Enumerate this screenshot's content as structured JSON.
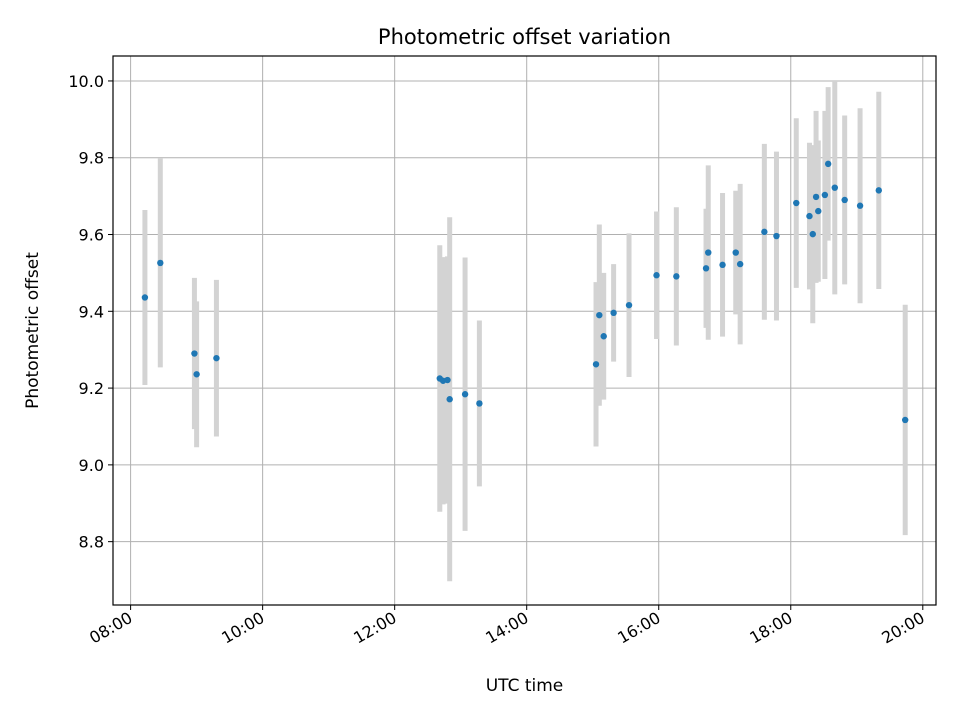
{
  "chart_data": {
    "type": "scatter",
    "title": "Photometric offset variation",
    "xlabel": "UTC time",
    "ylabel": "Photometric offset",
    "x_ticks": [
      "08:00",
      "10:00",
      "12:00",
      "14:00",
      "16:00",
      "18:00",
      "20:00"
    ],
    "y_ticks": [
      "8.8",
      "9.0",
      "9.2",
      "9.4",
      "9.6",
      "9.8",
      "10.0"
    ],
    "xlim": [
      "07:44",
      "20:12"
    ],
    "ylim": [
      8.635,
      10.065
    ],
    "grid": true,
    "marker_color": "#1f77b4",
    "errorbar_color": "#d3d3d3",
    "points": [
      {
        "x": "08:13",
        "y": 9.436,
        "err": 0.228
      },
      {
        "x": "08:27",
        "y": 9.526,
        "err": 0.272
      },
      {
        "x": "08:58",
        "y": 9.29,
        "err": 0.197
      },
      {
        "x": "09:00",
        "y": 9.236,
        "err": 0.19
      },
      {
        "x": "09:18",
        "y": 9.278,
        "err": 0.204
      },
      {
        "x": "12:41",
        "y": 9.225,
        "err": 0.347
      },
      {
        "x": "12:44",
        "y": 9.219,
        "err": 0.322
      },
      {
        "x": "12:48",
        "y": 9.221,
        "err": 0.322
      },
      {
        "x": "12:50",
        "y": 9.171,
        "err": 0.474
      },
      {
        "x": "13:04",
        "y": 9.184,
        "err": 0.356
      },
      {
        "x": "13:17",
        "y": 9.16,
        "err": 0.216
      },
      {
        "x": "15:03",
        "y": 9.262,
        "err": 0.214
      },
      {
        "x": "15:06",
        "y": 9.39,
        "err": 0.236
      },
      {
        "x": "15:10",
        "y": 9.335,
        "err": 0.165
      },
      {
        "x": "15:19",
        "y": 9.396,
        "err": 0.127
      },
      {
        "x": "15:33",
        "y": 9.416,
        "err": 0.187
      },
      {
        "x": "15:58",
        "y": 9.494,
        "err": 0.166
      },
      {
        "x": "16:16",
        "y": 9.491,
        "err": 0.18
      },
      {
        "x": "16:43",
        "y": 9.512,
        "err": 0.155
      },
      {
        "x": "16:45",
        "y": 9.553,
        "err": 0.227
      },
      {
        "x": "16:58",
        "y": 9.521,
        "err": 0.187
      },
      {
        "x": "17:10",
        "y": 9.553,
        "err": 0.161
      },
      {
        "x": "17:14",
        "y": 9.523,
        "err": 0.209
      },
      {
        "x": "17:36",
        "y": 9.607,
        "err": 0.229
      },
      {
        "x": "17:47",
        "y": 9.596,
        "err": 0.22
      },
      {
        "x": "18:05",
        "y": 9.682,
        "err": 0.221
      },
      {
        "x": "18:17",
        "y": 9.648,
        "err": 0.191
      },
      {
        "x": "18:20",
        "y": 9.601,
        "err": 0.232
      },
      {
        "x": "18:23",
        "y": 9.698,
        "err": 0.224
      },
      {
        "x": "18:25",
        "y": 9.661,
        "err": 0.184
      },
      {
        "x": "18:31",
        "y": 9.703,
        "err": 0.219
      },
      {
        "x": "18:34",
        "y": 9.784,
        "err": 0.2
      },
      {
        "x": "18:40",
        "y": 9.722,
        "err": 0.278
      },
      {
        "x": "18:49",
        "y": 9.69,
        "err": 0.22
      },
      {
        "x": "19:03",
        "y": 9.675,
        "err": 0.254
      },
      {
        "x": "19:20",
        "y": 9.715,
        "err": 0.257
      },
      {
        "x": "19:44",
        "y": 9.117,
        "err": 0.3
      }
    ]
  }
}
